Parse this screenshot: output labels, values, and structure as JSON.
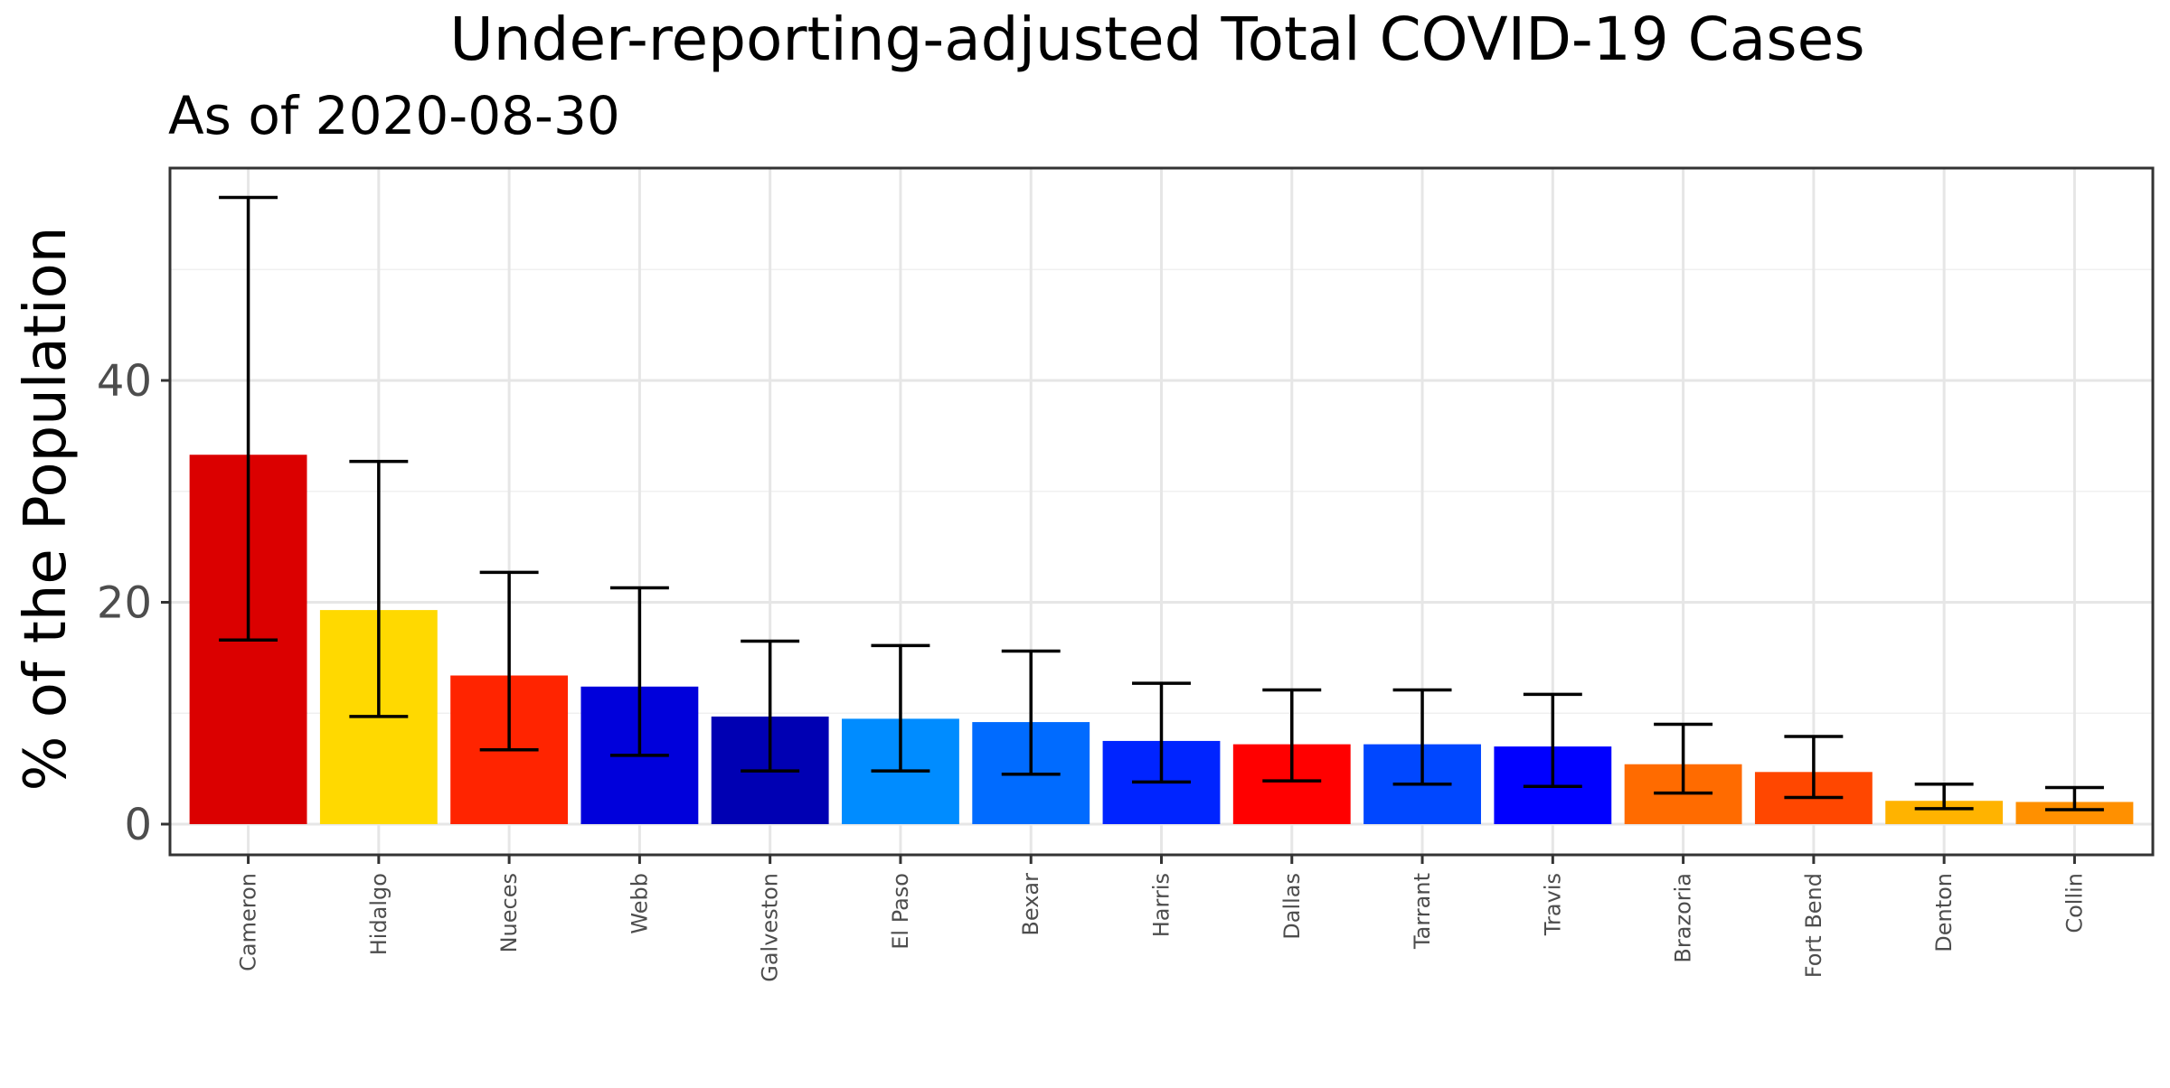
{
  "chart_data": {
    "type": "bar",
    "title": "Under-reporting-adjusted Total COVID-19 Cases",
    "subtitle": "As of 2020-08-30",
    "xlabel": "",
    "ylabel": "% of the Population",
    "ylim": [
      -2.8,
      59.0
    ],
    "yticks": [
      0,
      20,
      40
    ],
    "grid": true,
    "categories": [
      "Cameron",
      "Hidalgo",
      "Nueces",
      "Webb",
      "Galveston",
      "El Paso",
      "Bexar",
      "Harris",
      "Dallas",
      "Tarrant",
      "Travis",
      "Brazoria",
      "Fort Bend",
      "Denton",
      "Collin"
    ],
    "values": [
      33.3,
      19.3,
      13.4,
      12.4,
      9.7,
      9.5,
      9.2,
      7.5,
      7.2,
      7.2,
      7.0,
      5.4,
      4.7,
      2.1,
      2.0
    ],
    "error_low": [
      16.6,
      9.7,
      6.7,
      6.2,
      4.8,
      4.8,
      4.5,
      3.8,
      3.9,
      3.6,
      3.4,
      2.8,
      2.4,
      1.4,
      1.3
    ],
    "error_high": [
      56.5,
      32.7,
      22.7,
      21.3,
      16.5,
      16.1,
      15.6,
      12.7,
      12.1,
      12.1,
      11.7,
      9.0,
      7.9,
      3.6,
      3.3
    ],
    "colors": [
      "#DB0000",
      "#FFD900",
      "#FF2400",
      "#0000DB",
      "#0000B3",
      "#008CFF",
      "#006BFF",
      "#0024FF",
      "#FF0000",
      "#0047FF",
      "#0000FF",
      "#FF6B00",
      "#FF4700",
      "#FFB300",
      "#FF9000"
    ]
  }
}
